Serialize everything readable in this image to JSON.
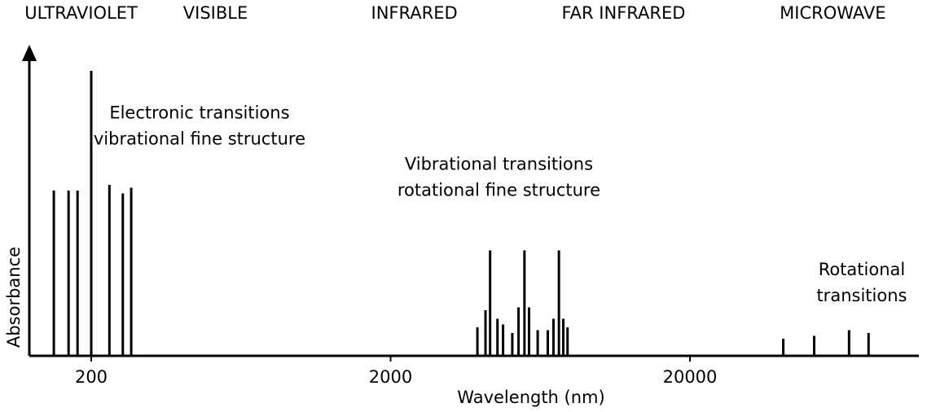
{
  "chart_data": {
    "type": "bar",
    "title": "",
    "xlabel": "Wavelength (nm)",
    "ylabel": "Absorbance",
    "x_scale": "log",
    "xlim": [
      110,
      110000
    ],
    "ylim": [
      0,
      1
    ],
    "x_ticks": [
      {
        "value": 200,
        "label": "200"
      },
      {
        "value": 2000,
        "label": "2000"
      },
      {
        "value": 20000,
        "label": "20000"
      }
    ],
    "regions": [
      {
        "label": "ULTRAVIOLET",
        "center": 185
      },
      {
        "label": "VISIBLE",
        "center": 520
      },
      {
        "label": "INFRARED",
        "center": 2400
      },
      {
        "label": "FAR INFRARED",
        "center": 12000
      },
      {
        "label": "MICROWAVE",
        "center": 60000
      }
    ],
    "series": [
      {
        "name": "Electronic transitions",
        "label_lines": [
          "Electronic transitions",
          "vibrational fine structure"
        ],
        "label_center": 460,
        "label_top": 0.89,
        "x": [
          150,
          168,
          180,
          200,
          230,
          255,
          272
        ],
        "values": [
          0.58,
          0.58,
          0.58,
          1.0,
          0.6,
          0.57,
          0.59
        ]
      },
      {
        "name": "Vibrational transitions",
        "label_lines": [
          "Vibrational transitions",
          "rotational fine structure"
        ],
        "label_center": 4600,
        "label_top": 0.71,
        "x": [
          3900,
          4150,
          4300,
          4550,
          4750,
          5100,
          5350,
          5600,
          5800,
          6200,
          6700,
          7000,
          7300,
          7550,
          7800
        ],
        "values": [
          0.1,
          0.16,
          0.37,
          0.13,
          0.11,
          0.08,
          0.17,
          0.37,
          0.17,
          0.09,
          0.09,
          0.13,
          0.37,
          0.13,
          0.1
        ]
      },
      {
        "name": "Rotational transitions",
        "label_lines": [
          "Rotational transitions"
        ],
        "label_display_lines": [
          "Rotational",
          "transitions"
        ],
        "label_center": 75000,
        "label_top": 0.34,
        "x": [
          41000,
          52000,
          68000,
          79000
        ],
        "values": [
          0.06,
          0.07,
          0.09,
          0.08
        ]
      }
    ]
  }
}
